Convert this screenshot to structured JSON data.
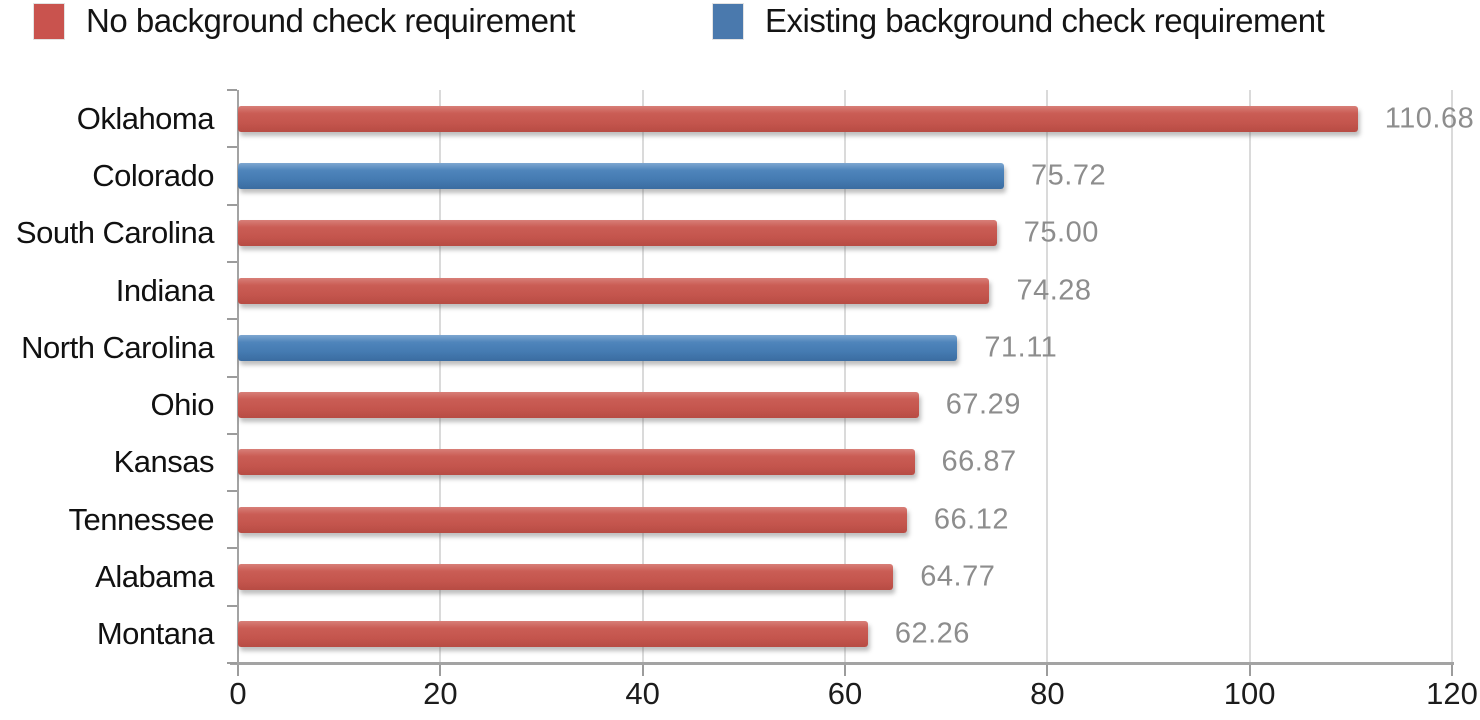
{
  "legend": {
    "items": [
      {
        "label": "No background check requirement",
        "color": "#c9534e",
        "series": 0
      },
      {
        "label": "Existing background check requirement",
        "color": "#4a79ad",
        "series": 1
      }
    ]
  },
  "chart_data": {
    "type": "bar",
    "orientation": "horizontal",
    "title": "",
    "categories": [
      "Oklahoma",
      "Colorado",
      "South Carolina",
      "Indiana",
      "North Carolina",
      "Ohio",
      "Kansas",
      "Tennessee",
      "Alabama",
      "Montana"
    ],
    "series": [
      {
        "name": "No background check requirement",
        "color": "#c9534e"
      },
      {
        "name": "Existing background check requirement",
        "color": "#4a79ad"
      }
    ],
    "bars": [
      {
        "category": "Oklahoma",
        "value": 110.68,
        "label": "110.68",
        "series": 0
      },
      {
        "category": "Colorado",
        "value": 75.72,
        "label": "75.72",
        "series": 1
      },
      {
        "category": "South Carolina",
        "value": 75.0,
        "label": "75.00",
        "series": 0
      },
      {
        "category": "Indiana",
        "value": 74.28,
        "label": "74.28",
        "series": 0
      },
      {
        "category": "North Carolina",
        "value": 71.11,
        "label": "71.11",
        "series": 1
      },
      {
        "category": "Ohio",
        "value": 67.29,
        "label": "67.29",
        "series": 0
      },
      {
        "category": "Kansas",
        "value": 66.87,
        "label": "66.87",
        "series": 0
      },
      {
        "category": "Tennessee",
        "value": 66.12,
        "label": "66.12",
        "series": 0
      },
      {
        "category": "Alabama",
        "value": 64.77,
        "label": "64.77",
        "series": 0
      },
      {
        "category": "Montana",
        "value": 62.26,
        "label": "62.26",
        "series": 0
      }
    ],
    "xlim": [
      0,
      120
    ],
    "x_ticks": [
      "0",
      "20",
      "40",
      "60",
      "80",
      "100",
      "120"
    ],
    "grid": true,
    "legend_position": "top"
  },
  "colors": {
    "no_background_check_bar": "#c9534e",
    "existing_background_check_bar": "#4a79ad",
    "gridline": "#dadada",
    "axis_line": "#a3a3a3",
    "value_label_text": "#8d8d8d",
    "category_label_text": "#111111"
  }
}
